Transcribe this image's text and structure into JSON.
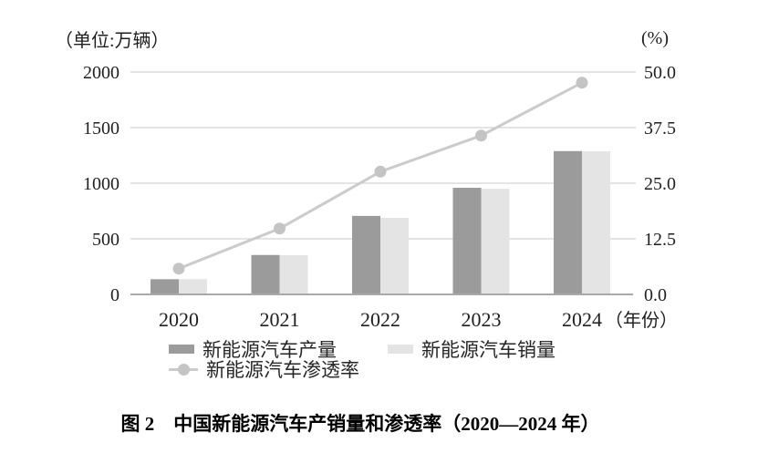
{
  "figure": {
    "caption": "图 2　中国新能源汽车产销量和渗透率（2020—2024 年）"
  },
  "chart_data": {
    "type": "bar+line",
    "title": "图 2 中国新能源汽车产销量和渗透率（2020—2024 年）",
    "categories": [
      "2020",
      "2021",
      "2022",
      "2023",
      "2024"
    ],
    "x_suffix": "（年份）",
    "series": [
      {
        "name": "新能源汽车产量",
        "type": "bar",
        "axis": "left",
        "color": "#9b9b9b",
        "values": [
          136.6,
          354.5,
          705.8,
          958.7,
          1288.8
        ]
      },
      {
        "name": "新能源汽车销量",
        "type": "bar",
        "axis": "left",
        "color": "#e4e4e4",
        "values": [
          136.7,
          352.1,
          688.7,
          949.5,
          1286.6
        ]
      },
      {
        "name": "新能源汽车渗透率",
        "type": "line",
        "axis": "right",
        "color": "#cbcbcb",
        "values": [
          5.8,
          14.8,
          27.6,
          35.7,
          47.6
        ]
      }
    ],
    "left_axis": {
      "label": "（单位:万辆）",
      "range": [
        0,
        2000
      ],
      "ticks": [
        "0",
        "500",
        "1000",
        "1500",
        "2000"
      ]
    },
    "right_axis": {
      "label": "(%)",
      "range": [
        0,
        50
      ],
      "ticks": [
        "0.0",
        "12.5",
        "25.0",
        "37.5",
        "50.0"
      ]
    },
    "grid": true,
    "legend_position": "bottom",
    "colors": {
      "grid": "#c9c9c9",
      "axis": "#a9a9a9",
      "text": "#1f1f1f",
      "penetration_dot": "#c4c4c4"
    }
  }
}
